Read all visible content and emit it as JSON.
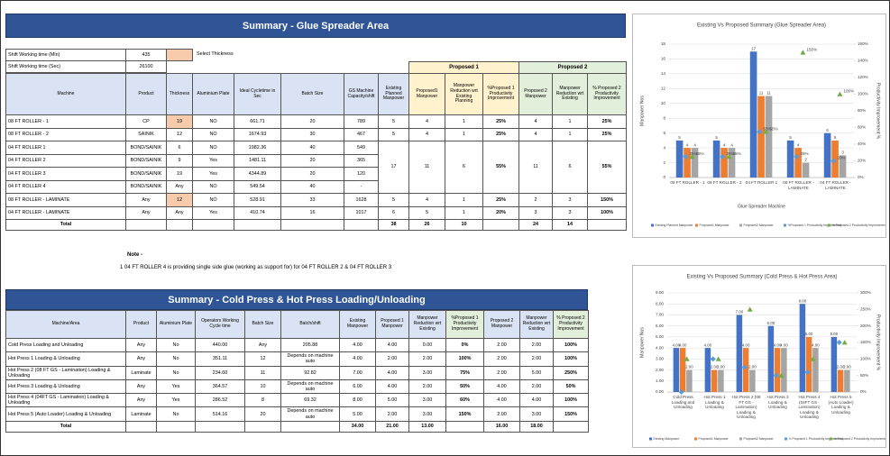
{
  "top_table": {
    "title": "Summary - Glue Spreader Area",
    "settings": [
      [
        "Shift Working time (Min)",
        "435",
        "Select Thickness"
      ],
      [
        "Shift Working time (Sec)",
        "26100"
      ]
    ],
    "groups": [
      "Proposed 1",
      "Proposed 2"
    ],
    "headers": [
      "Machine",
      "Product",
      "Thickness",
      "Aluminium Plate",
      "Ideal Cycletime in Sec",
      "Batch Size",
      "GS Machine Capacity/shift",
      "Existing Planned Manpower",
      "Proposed1 Manpower",
      "Manpower Reduction wrt Existing Planning",
      "%Proposed 1 Productivity Improvement",
      "Proposed 2 Manpower",
      "Manpower Reduction wrt Existing",
      "% Proposed 2 Productivity Improvement"
    ],
    "rows": [
      [
        "08 FT ROLLER - 1",
        "CP",
        "19",
        "NO",
        "661.71",
        "20",
        "789",
        "5",
        "4",
        "1",
        "25%",
        "4",
        "1",
        "25%"
      ],
      [
        "08 FT ROLLER - 2",
        "SAINIK",
        "12",
        "NO",
        "1674.93",
        "30",
        "467",
        "5",
        "4",
        "1",
        "25%",
        "4",
        "1",
        "25%"
      ],
      [
        "04 FT ROLLER 1",
        "BOND/SAINIK",
        "6",
        "NO",
        "1982.36",
        "40",
        "549",
        "17",
        "11",
        "6",
        "55%",
        "11",
        "6",
        "55%"
      ],
      [
        "04 FT ROLLER 2",
        "BOND/SAINIK",
        "9",
        "Yes",
        "1481.11",
        "20",
        "365"
      ],
      [
        "04 FT ROLLER 3",
        "BOND/SAINIK",
        "19",
        "Yes",
        "4344.89",
        "20",
        "120"
      ],
      [
        "04 FT ROLLER 4",
        "BOND/SAINIK",
        "Any",
        "NO",
        "549.54",
        "40",
        "-"
      ],
      [
        "08 FT ROLLER - LAMINATE",
        "Any",
        "12",
        "NO",
        "528.91",
        "33",
        "1628",
        "5",
        "4",
        "1",
        "25%",
        "2",
        "3",
        "150%"
      ],
      [
        "04 FT ROLLER - LAMINATE",
        "Any",
        "Any",
        "Yes",
        "410.74",
        "16",
        "1017",
        "6",
        "5",
        "1",
        "20%",
        "3",
        "3",
        "100%"
      ]
    ],
    "total": [
      "Total",
      null,
      null,
      null,
      null,
      null,
      null,
      "38",
      "26",
      "10",
      null,
      "24",
      "14",
      null
    ]
  },
  "note": {
    "title": "Note -",
    "text": "1 04 FT ROLLER 4 is providing single side glue (working as support for) for 04 FT ROLLER 2 & 04 FT ROLLER 3"
  },
  "bottom_table": {
    "title": "Summary - Cold Press & Hot Press Loading/Unloading",
    "headers": [
      "Machine/Area",
      "Product",
      "Aluminium Plate",
      "Operators Working Cycle time",
      "Batch Size",
      "Batch/shift",
      "Existing Manpower",
      "Proposed 1 Manpower",
      "Manpower Reduction wrt Existing",
      "%Proposed 1 Productivity Improvement",
      "Proposed 2 Manpower",
      "Manpower Reduction wrt Existing",
      "% Proposed 2 Productivity Improvement"
    ],
    "rows": [
      [
        "Cold Press Loading and Unloading",
        "Any",
        "No",
        "440.00",
        "Any",
        "205.88",
        "4.00",
        "4.00",
        "0.00",
        "0%",
        "2.00",
        "2.00",
        "100%"
      ],
      [
        "Hot Press 1 Loading & Unloading",
        "Any",
        "No",
        "351.11",
        "12",
        "Depends on machine auto",
        "4.00",
        "2.00",
        "2.00",
        "100%",
        "2.00",
        "2.00",
        "100%"
      ],
      [
        "Hot Press 2 (08 FT GS - Lamination) Loading & Unloading",
        "Laminate",
        "No",
        "234.60",
        "11",
        "92.82",
        "7.00",
        "4.00",
        "3.00",
        "75%",
        "2.00",
        "5.00",
        "250%"
      ],
      [
        "Hot Press 3 Loading & Unloading",
        "Any",
        "Yes",
        "364.57",
        "10",
        "Depends on machine auto",
        "6.00",
        "4.00",
        "2.00",
        "50%",
        "4.00",
        "2.00",
        "50%"
      ],
      [
        "Hot Press 4 (04FT GS - Lamination) Loading & Unloading",
        "Any",
        "Yes",
        "286.52",
        "8",
        "69.32",
        "8.00",
        "5.00",
        "3.00",
        "60%",
        "4.00",
        "4.00",
        "100%"
      ],
      [
        "Hot Press 5 (Auto Loader) Loading & Unloading",
        "Laminate",
        "No",
        "514.16",
        "20",
        "Depends on machine auto",
        "5.00",
        "2.00",
        "3.00",
        "150%",
        "2.00",
        "3.00",
        "150%"
      ]
    ],
    "total": [
      "Total",
      null,
      null,
      null,
      null,
      null,
      "34.00",
      "21.00",
      "13.00",
      null,
      "16.00",
      "18.00",
      null
    ]
  },
  "chart_data": [
    {
      "type": "bar",
      "title": "Existing Vs Proposed Summary (Glue Spreader Area)",
      "x_label": "Glue Spreader Machine",
      "y_label": "Manpower Nos",
      "y2_label": "Productivity Improvement %",
      "categories": [
        "08 FT ROLLER - 1",
        "08 FT ROLLER - 2",
        "04 FT ROLLER 1",
        "08 FT ROLLER - LAMINATE",
        "04 FT ROLLER - LAMINATE"
      ],
      "ylim": [
        0,
        18
      ],
      "yticks": [
        0,
        2,
        4,
        6,
        8,
        10,
        12,
        14,
        16,
        18
      ],
      "y2lim": [
        0,
        160
      ],
      "y2ticks": [
        {
          "value": 0,
          "label": "0%"
        },
        {
          "value": 20,
          "label": "20%"
        },
        {
          "value": 40,
          "label": "40%"
        },
        {
          "value": 60,
          "label": "60%"
        },
        {
          "value": 80,
          "label": "80%"
        },
        {
          "value": 100,
          "label": "100%"
        },
        {
          "value": 120,
          "label": "120%"
        },
        {
          "value": 140,
          "label": "140%"
        },
        {
          "value": 160,
          "label": "160%"
        }
      ],
      "grid": true,
      "legend": "bottom",
      "series": [
        {
          "name": "Existing Planned Manpower",
          "color": "#4472c4",
          "values": [
            5,
            5,
            17,
            5,
            6
          ]
        },
        {
          "name": "Proposed1 Manpower",
          "color": "#ed7d31",
          "values": [
            4,
            4,
            11,
            4,
            5
          ]
        },
        {
          "name": "Proposed2 Manpower",
          "color": "#a5a5a5",
          "values": [
            4,
            4,
            11,
            2,
            3
          ]
        },
        {
          "name": "%Proposed 1 Productivity Improvement",
          "color": "#5b9bd5",
          "axis": "y2",
          "marker": "diamond",
          "values": [
            25,
            25,
            55,
            25,
            20
          ],
          "value_labels": [
            "25%",
            "25%",
            "55%",
            "25%",
            "20%"
          ]
        },
        {
          "name": "% Proposed 2 Productivity Improvement",
          "color": "#70ad47",
          "axis": "y2",
          "marker": "triangle",
          "values": [
            25,
            25,
            55,
            150,
            100
          ],
          "value_labels": [
            "25%",
            "25%",
            "55%",
            "150%",
            "100%"
          ]
        }
      ]
    },
    {
      "type": "bar",
      "title": "Existing Vs Proposed Summary (Cold Press & Hot Press Area)",
      "y_label": "Manpower Nos",
      "y2_label": "Productivity Improvement %",
      "categories": [
        "Cold Press Loading and Unloading",
        "Hot Press 1 Loading & Unloading",
        "Hot Press 2 (08 FT GS - Lamination) Loading & Unloading",
        "Hot Press 3 Loading & Unloading",
        "Hot Press 4 (04FT GS - Lamination) Loading & Unloading",
        "Hot Press 5 (Auto Loader) Loading & Unloading"
      ],
      "ylim": [
        0,
        9
      ],
      "yticks": [
        {
          "value": 0,
          "label": "0.00"
        },
        {
          "value": 1,
          "label": "1.00"
        },
        {
          "value": 2,
          "label": "2.00"
        },
        {
          "value": 3,
          "label": "3.00"
        },
        {
          "value": 4,
          "label": "4.00"
        },
        {
          "value": 5,
          "label": "5.00"
        },
        {
          "value": 6,
          "label": "6.00"
        },
        {
          "value": 7,
          "label": "7.00"
        },
        {
          "value": 8,
          "label": "8.00"
        },
        {
          "value": 9,
          "label": "9.00"
        }
      ],
      "y2lim": [
        0,
        300
      ],
      "y2ticks": [
        {
          "value": 0,
          "label": "0%"
        },
        {
          "value": 50,
          "label": "50%"
        },
        {
          "value": 100,
          "label": "100%"
        },
        {
          "value": 150,
          "label": "150%"
        },
        {
          "value": 200,
          "label": "200%"
        },
        {
          "value": 250,
          "label": "250%"
        },
        {
          "value": 300,
          "label": "300%"
        }
      ],
      "grid": true,
      "legend": "bottom",
      "series": [
        {
          "name": "Existing Manpower",
          "color": "#4472c4",
          "values": [
            4,
            4,
            7,
            6,
            8,
            5
          ],
          "value_labels": [
            "4.00",
            "4.00",
            "7.00",
            "6.00",
            "8.00",
            "5.00"
          ]
        },
        {
          "name": "Proposed1 Manpower",
          "color": "#ed7d31",
          "values": [
            4,
            2,
            4,
            4,
            5,
            2
          ],
          "value_labels": [
            "4.00",
            "2.00",
            "4.00",
            "4.00",
            "5.00",
            "2.00"
          ]
        },
        {
          "name": "Proposed2 Manpower",
          "color": "#a5a5a5",
          "values": [
            2,
            2,
            2,
            4,
            4,
            2
          ],
          "value_labels": [
            "2.00",
            "2.00",
            "2.00",
            "4.00",
            "4.00",
            "2.00"
          ]
        },
        {
          "name": "% Proposed 1 Productivity Improvement",
          "color": "#5b9bd5",
          "axis": "y2",
          "marker": "diamond",
          "values": [
            0,
            100,
            75,
            50,
            60,
            150
          ]
        },
        {
          "name": "% Proposed 2 Productivity Improvement",
          "color": "#70ad47",
          "axis": "y2",
          "marker": "triangle",
          "values": [
            100,
            100,
            250,
            50,
            100,
            150
          ]
        }
      ]
    }
  ]
}
